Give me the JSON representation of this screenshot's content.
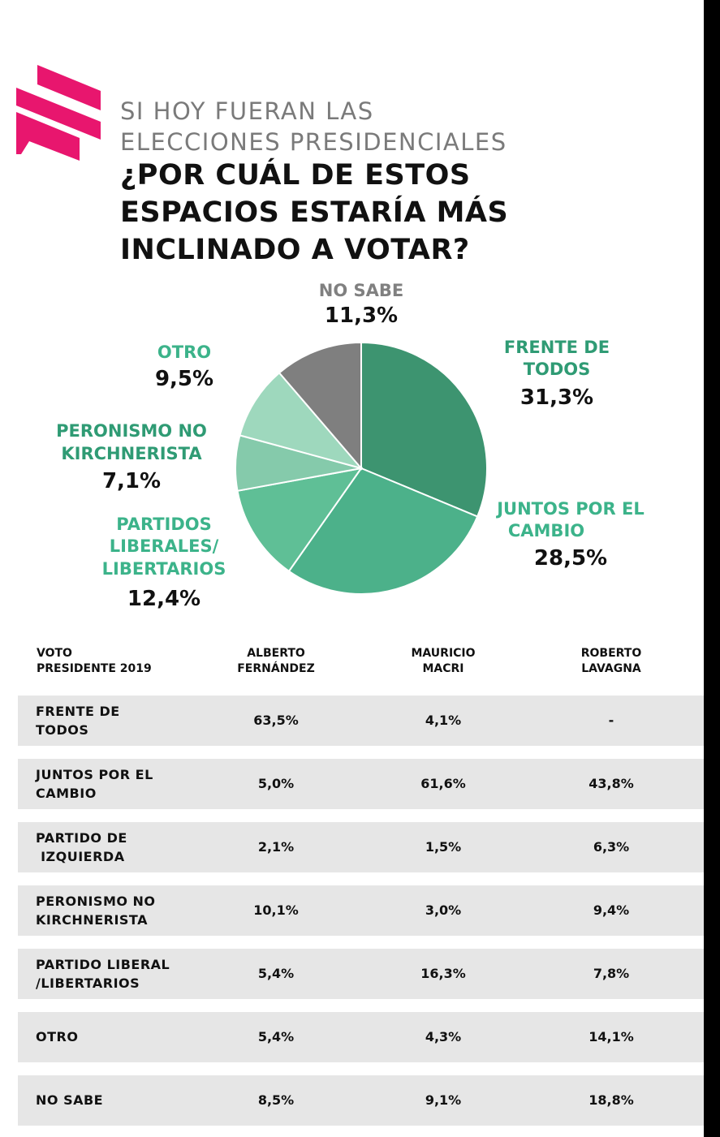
{
  "header": {
    "subtitle_line1": "SI HOY FUERAN LAS",
    "subtitle_line2": "ELECCIONES PRESIDENCIALES",
    "question_line1": "¿POR CUÁL DE ESTOS",
    "question_line2": "ESPACIOS ESTARÍA MÁS",
    "question_line3": "INCLINADO A VOTAR?"
  },
  "colors": {
    "accent": "#e8166e",
    "label_green": "#2f9b74",
    "label_light_green": "#3cb38a",
    "label_gray": "#808080"
  },
  "chart_data": [
    {
      "type": "pie",
      "title": "¿POR CUÁL DE ESTOS ESPACIOS ESTARÍA MÁS INCLINADO A VOTAR?",
      "slices": [
        {
          "name": "FRENTE DE TODOS",
          "value": 31.3,
          "label": "31,3%",
          "color": "#3d9470"
        },
        {
          "name": "JUNTOS POR EL CAMBIO",
          "value": 28.5,
          "label": "28,5%",
          "color": "#4cb18a"
        },
        {
          "name": "PARTIDOS LIBERALES/ LIBERTARIOS",
          "value": 12.4,
          "label": "12,4%",
          "color": "#5fbf96"
        },
        {
          "name": "PERONISMO NO KIRCHNERISTA",
          "value": 7.1,
          "label": "7,1%",
          "color": "#85caab"
        },
        {
          "name": "OTRO",
          "value": 9.5,
          "label": "9,5%",
          "color": "#9ed8bd"
        },
        {
          "name": "NO SABE",
          "value": 11.3,
          "label": "11,3%",
          "color": "#7f7f7f"
        }
      ]
    },
    {
      "type": "table",
      "columns": [
        "VOTO PRESIDENTE 2019",
        "ALBERTO FERNÁNDEZ",
        "MAURICIO MACRI",
        "ROBERTO LAVAGNA"
      ],
      "rows": [
        {
          "label_line1": "FRENTE DE",
          "label_line2": "TODOS",
          "values": [
            "63,5%",
            "4,1%",
            "-"
          ]
        },
        {
          "label_line1": "JUNTOS POR EL",
          "label_line2": "CAMBIO",
          "values": [
            "5,0%",
            "61,6%",
            "43,8%"
          ]
        },
        {
          "label_line1": "PARTIDO DE",
          "label_line2": " IZQUIERDA",
          "values": [
            "2,1%",
            "1,5%",
            "6,3%"
          ]
        },
        {
          "label_line1": "PERONISMO NO",
          "label_line2": "KIRCHNERISTA",
          "values": [
            "10,1%",
            "3,0%",
            "9,4%"
          ]
        },
        {
          "label_line1": "PARTIDO LIBERAL",
          "label_line2": "/LIBERTARIOS",
          "values": [
            "5,4%",
            "16,3%",
            "7,8%"
          ]
        },
        {
          "label_line1": "OTRO",
          "label_line2": "",
          "values": [
            "5,4%",
            "4,3%",
            "14,1%"
          ]
        },
        {
          "label_line1": "NO SABE",
          "label_line2": "",
          "values": [
            "8,5%",
            "9,1%",
            "18,8%"
          ]
        }
      ]
    }
  ],
  "pie_labels": {
    "no_sabe": {
      "l1": "NO SABE",
      "pct": "11,3%"
    },
    "frente": {
      "l1": "FRENTE DE",
      "l2": "TODOS",
      "pct": "31,3%"
    },
    "otro": {
      "l1": "OTRO",
      "pct": "9,5%"
    },
    "peronismo": {
      "l1": "PERONISMO NO",
      "l2": "KIRCHNERISTA",
      "pct": "7,1%"
    },
    "juntos": {
      "l1": "JUNTOS POR EL",
      "l2": "CAMBIO",
      "pct": "28,5%"
    },
    "liberales": {
      "l1": "PARTIDOS",
      "l2": "LIBERALES/",
      "l3": "LIBERTARIOS",
      "pct": "12,4%"
    }
  },
  "table_header": {
    "col0_l1": "VOTO",
    "col0_l2": "PRESIDENTE 2019",
    "col1_l1": "ALBERTO",
    "col1_l2": "FERNÁNDEZ",
    "col2_l1": "MAURICIO",
    "col2_l2": "MACRI",
    "col3_l1": "ROBERTO",
    "col3_l2": "LAVAGNA"
  }
}
